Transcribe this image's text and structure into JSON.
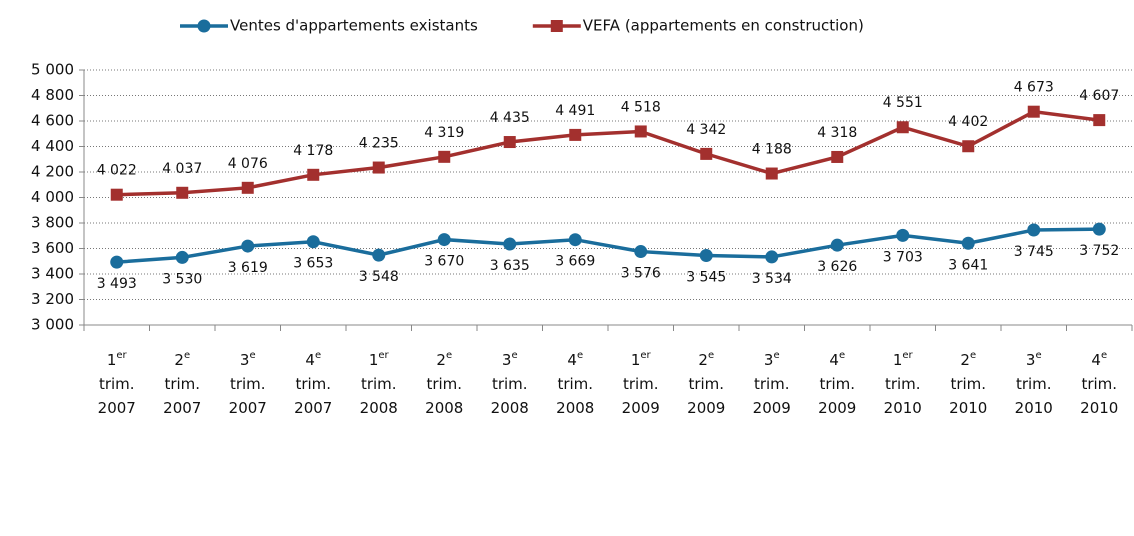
{
  "chart_data": {
    "type": "line",
    "categories": [
      "1er trim. 2007",
      "2e trim. 2007",
      "3e trim. 2007",
      "4e trim. 2007",
      "1er trim. 2008",
      "2e trim. 2008",
      "3e trim. 2008",
      "4e trim. 2008",
      "1er trim. 2009",
      "2e trim. 2009",
      "3e trim. 2009",
      "4e trim. 2009",
      "1er trim. 2010",
      "2e trim. 2010",
      "3e trim. 2010",
      "4e trim. 2010"
    ],
    "series": [
      {
        "name": "Ventes d'appartements existants",
        "color": "#1a6d9c",
        "marker": "circle",
        "values": [
          3493,
          3530,
          3619,
          3653,
          3548,
          3670,
          3635,
          3669,
          3576,
          3545,
          3534,
          3626,
          3703,
          3641,
          3745,
          3752
        ],
        "value_labels": [
          "3 493",
          "3 530",
          "3 619",
          "3 653",
          "3 548",
          "3 670",
          "3 635",
          "3 669",
          "3 576",
          "3 545",
          "3 534",
          "3 626",
          "3 703",
          "3 641",
          "3 745",
          "3 752"
        ]
      },
      {
        "name": "VEFA (appartements en construction)",
        "color": "#a3302e",
        "marker": "square",
        "values": [
          4022,
          4037,
          4076,
          4178,
          4235,
          4319,
          4435,
          4491,
          4518,
          4342,
          4188,
          4318,
          4551,
          4402,
          4673,
          4607
        ],
        "value_labels": [
          "4 022",
          "4 037",
          "4 076",
          "4 178",
          "4 235",
          "4 319",
          "4 435",
          "4 491",
          "4 518",
          "4 342",
          "4 188",
          "4 318",
          "4 551",
          "4 402",
          "4 673",
          "4 607"
        ]
      }
    ],
    "ylim": [
      3000,
      5000
    ],
    "yticks": [
      {
        "value": 3000,
        "label": "3 000"
      },
      {
        "value": 3200,
        "label": "3 200"
      },
      {
        "value": 3400,
        "label": "3 400"
      },
      {
        "value": 3600,
        "label": "3 600"
      },
      {
        "value": 3800,
        "label": "3 800"
      },
      {
        "value": 4000,
        "label": "4 000"
      },
      {
        "value": 4200,
        "label": "4 200"
      },
      {
        "value": 4400,
        "label": "4 400"
      },
      {
        "value": 4600,
        "label": "4 600"
      },
      {
        "value": 4800,
        "label": "4 800"
      },
      {
        "value": 5000,
        "label": "5 000"
      }
    ],
    "grid": true,
    "legend": "top"
  }
}
